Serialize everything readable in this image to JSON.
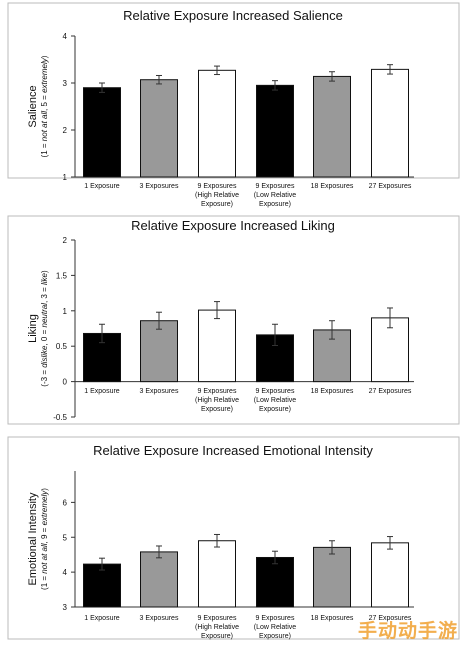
{
  "chart_data": [
    {
      "type": "bar",
      "title": "Relative Exposure Increased Salience",
      "ylabel": "Salience",
      "ylabel_note": "(1 = not at all, 5 = extremely)",
      "ylim": [
        1,
        4
      ],
      "yticks": [
        "1",
        "2",
        "3",
        "4"
      ],
      "categories": [
        [
          "1 Exposure"
        ],
        [
          "3 Exposures"
        ],
        [
          "9 Exposures",
          "(High Relative",
          "Exposure)"
        ],
        [
          "9 Exposures",
          "(Low Relative",
          "Exposure)"
        ],
        [
          "18 Exposures"
        ],
        [
          "27 Exposures"
        ]
      ],
      "values": [
        2.9,
        3.07,
        3.27,
        2.95,
        3.14,
        3.29
      ],
      "errors": [
        0.1,
        0.09,
        0.09,
        0.1,
        0.1,
        0.1
      ],
      "colors": [
        "#000000",
        "#999999",
        "#ffffff",
        "#000000",
        "#999999",
        "#ffffff"
      ]
    },
    {
      "type": "bar",
      "title": "Relative Exposure Increased Liking",
      "ylabel": "Liking",
      "ylabel_note": "(-3 = dislike, 0 = neutral, 3 = like)",
      "ylim": [
        -0.5,
        2
      ],
      "yticks": [
        "-0.5",
        "0",
        "0.5",
        "1",
        "1.5",
        "2"
      ],
      "categories": [
        [
          "1 Exposure"
        ],
        [
          "3 Exposures"
        ],
        [
          "9 Exposures",
          "(High Relative",
          "Exposure)"
        ],
        [
          "9 Exposures",
          "(Low Relative",
          "Exposure)"
        ],
        [
          "18 Exposures"
        ],
        [
          "27 Exposures"
        ]
      ],
      "values": [
        0.68,
        0.86,
        1.01,
        0.66,
        0.73,
        0.9
      ],
      "errors": [
        0.13,
        0.12,
        0.12,
        0.15,
        0.13,
        0.14
      ],
      "colors": [
        "#000000",
        "#999999",
        "#ffffff",
        "#000000",
        "#999999",
        "#ffffff"
      ]
    },
    {
      "type": "bar",
      "title": "Relative Exposure Increased Emotional Intensity",
      "ylabel": "Emotional Intensity",
      "ylabel_note": "(1 = not at all, 9 = extremely)",
      "ylim": [
        3,
        7
      ],
      "yticks": [
        "3",
        "4",
        "5",
        "6"
      ],
      "categories": [
        [
          "1 Exposure"
        ],
        [
          "3 Exposures"
        ],
        [
          "9 Exposures",
          "(High Relative",
          "Exposure)"
        ],
        [
          "9 Exposures",
          "(Low Relative",
          "Exposure)"
        ],
        [
          "18 Exposures"
        ],
        [
          "27 Exposures"
        ]
      ],
      "values": [
        4.23,
        4.58,
        4.9,
        4.42,
        4.71,
        4.84
      ],
      "errors": [
        0.17,
        0.17,
        0.18,
        0.18,
        0.19,
        0.18
      ],
      "colors": [
        "#000000",
        "#999999",
        "#ffffff",
        "#000000",
        "#999999",
        "#ffffff"
      ]
    }
  ],
  "watermark": "手动动手游"
}
